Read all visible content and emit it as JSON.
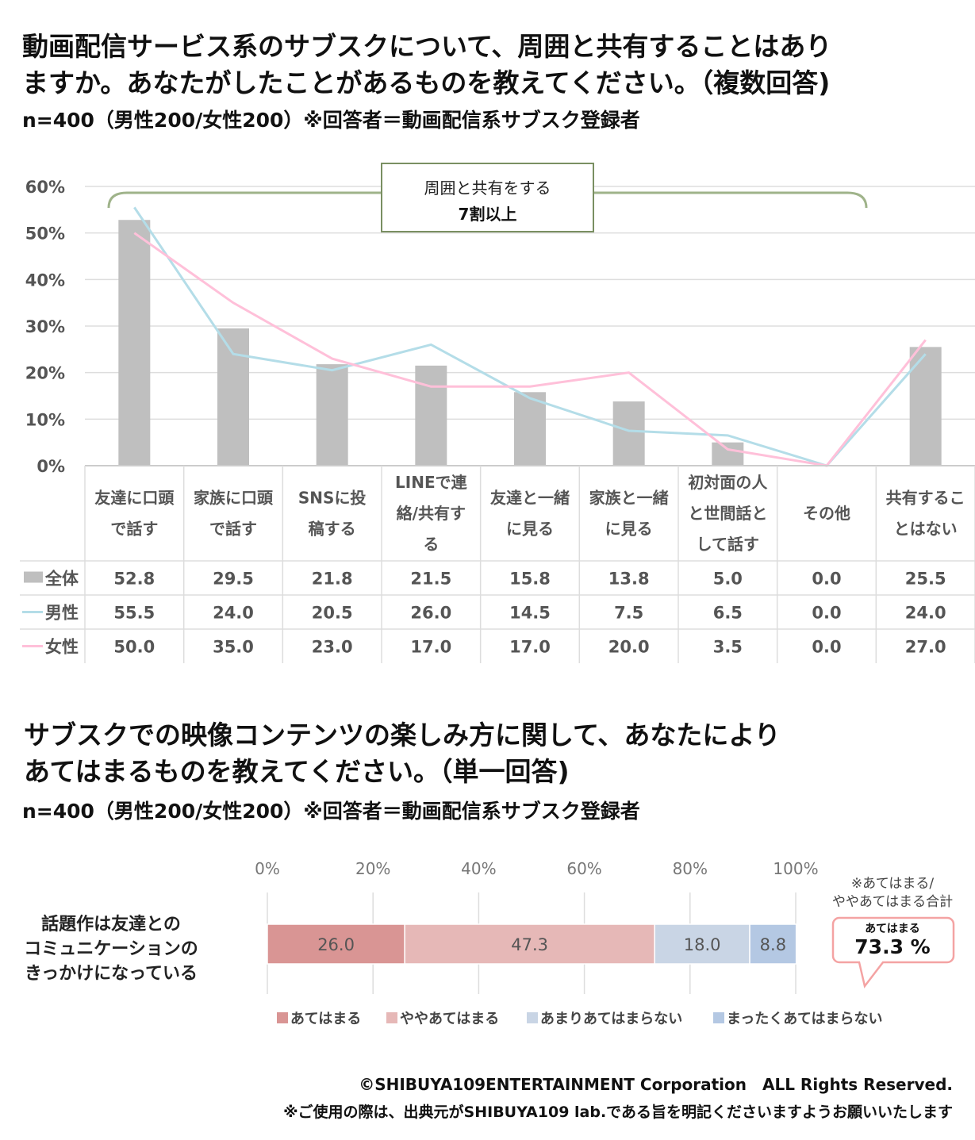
{
  "q1": {
    "title": "動画配信サービス系のサブスクについて、周囲と共有することはあり\nますか。あなたがしたことがあるものを教えてください。（複数回答)",
    "subtitle": "n=400（男性200/女性200）※回答者＝動画配信系サブスク登録者",
    "callout_line1": "周囲と共有をする",
    "callout_line2": "7割以上"
  },
  "q2": {
    "title": "サブスクでの映像コンテンツの楽しみ方に関して、あなたにより\nあてはまるものを教えてください。（単一回答)",
    "subtitle": "n=400（男性200/女性200）※回答者＝動画配信系サブスク登録者",
    "bubble_note": "※あてはまる/\nややあてはまる合計",
    "bubble_label": "あてはまる",
    "bubble_value": "73.3 %"
  },
  "footer": {
    "copyright": "©SHIBUYA109ENTERTAINMENT Corporation　ALL Rights Reserved.",
    "note": "※ご使用の際は、出典元がSHIBUYA109 lab.である旨を明記くださいますようお願いいたします"
  },
  "chart_data": [
    {
      "type": "bar",
      "title": "動画配信サービス系のサブスクについて、周囲と共有することはありますか。",
      "categories": [
        "友達に口頭\nで話す",
        "家族に口頭\nで話す",
        "SNSに投\n稿する",
        "LINEで連\n絡/共有す\nる",
        "友達と一緒\nに見る",
        "家族と一緒\nに見る",
        "初対面の人\nと世間話と\nして話す",
        "その他",
        "共有するこ\nとはない"
      ],
      "series": [
        {
          "name": "全体",
          "kind": "bar",
          "color": "#bfbfbf",
          "values": [
            52.8,
            29.5,
            21.8,
            21.5,
            15.8,
            13.8,
            5.0,
            0.0,
            25.5
          ]
        },
        {
          "name": "男性",
          "kind": "line",
          "color": "#b4dde8",
          "values": [
            55.5,
            24.0,
            20.5,
            26.0,
            14.5,
            7.5,
            6.5,
            0.0,
            24.0
          ]
        },
        {
          "name": "女性",
          "kind": "line",
          "color": "#ffc0d9",
          "values": [
            50.0,
            35.0,
            23.0,
            17.0,
            17.0,
            20.0,
            3.5,
            0.0,
            27.0
          ]
        }
      ],
      "yticks": [
        "0%",
        "10%",
        "20%",
        "30%",
        "40%",
        "50%",
        "60%"
      ],
      "ylim": [
        0,
        60
      ],
      "grid": true
    },
    {
      "type": "bar",
      "stacked": true,
      "orientation": "horizontal",
      "categories": [
        "話題作は友達との\nコミュニケーションの\nきっかけになっている"
      ],
      "series": [
        {
          "name": "あてはまる",
          "color": "#d99594",
          "values": [
            26.0
          ]
        },
        {
          "name": "ややあてはまる",
          "color": "#e6b8b7",
          "values": [
            47.3
          ]
        },
        {
          "name": "あまりあてはまらない",
          "color": "#c9d5e5",
          "values": [
            18.0
          ]
        },
        {
          "name": "まったくあてはまらない",
          "color": "#b4c8e3",
          "values": [
            8.8
          ]
        }
      ],
      "xticks": [
        "0%",
        "20%",
        "40%",
        "60%",
        "80%",
        "100%"
      ],
      "xlim": [
        0,
        100
      ],
      "legend": "bottom"
    }
  ]
}
